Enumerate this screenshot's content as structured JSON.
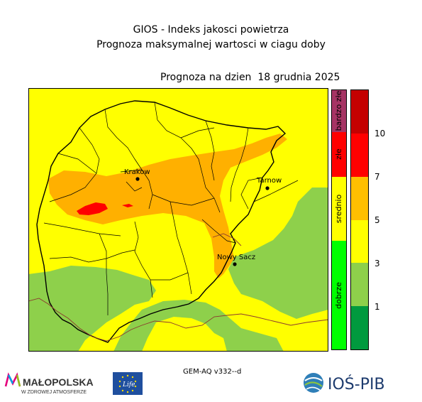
{
  "title": {
    "line1": "GIOS - Indeks jakosci powietrza",
    "line2": "Prognoza maksymalnej wartosci w ciagu doby",
    "forecast_date": "Prognoza na dzien  18 grudnia 2025"
  },
  "cities": [
    {
      "name": "Krakow"
    },
    {
      "name": "Tarnow"
    },
    {
      "name": "Nowy Sacz"
    }
  ],
  "categories": [
    {
      "label": "bardzo złe",
      "color": "#a63464"
    },
    {
      "label": "złe",
      "color": "#ff0000"
    },
    {
      "label": "srednio",
      "color": "#ffff00"
    },
    {
      "label": "dobrze",
      "color": "#00ff00"
    }
  ],
  "scale": {
    "colors": [
      "#009a3e",
      "#8ed04b",
      "#ffff00",
      "#ffbf00",
      "#ff0000",
      "#c40000"
    ],
    "ticks": [
      "1",
      "3",
      "5",
      "7",
      "10"
    ]
  },
  "model_label": "GEM-AQ v332--d",
  "logos": {
    "malopolska_name": "MAŁOPOLSKA",
    "malopolska_tagline": "W ZDROWEJ ATMOSFERZE",
    "eu_life": "Life",
    "ios": "IOŚ-PIB"
  }
}
